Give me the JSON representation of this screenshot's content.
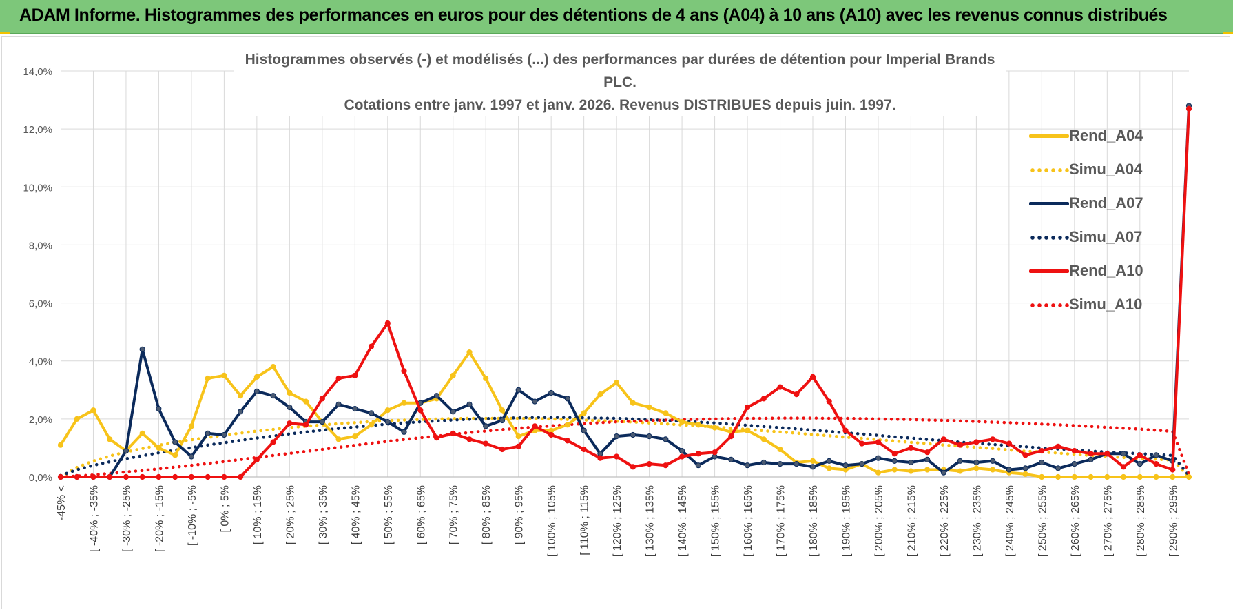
{
  "header": {
    "title": "ADAM Informe. Histogrammes des performances en euros pour des détentions de 4 ans (A04) à 10 ans (A10) avec les revenus connus distribués"
  },
  "chart_data": {
    "type": "line",
    "title_line1": "Histogrammes observés (-) et modélisés (...) des performances par durées de détention pour Imperial Brands PLC.",
    "title_line2": "Cotations entre janv. 1997 et janv. 2026. Revenus DISTRIBUES depuis juin. 1997.",
    "xlabel": "",
    "ylabel": "",
    "ylim": [
      0,
      14
    ],
    "y_ticks": [
      "0,0%",
      "2,0%",
      "4,0%",
      "6,0%",
      "8,0%",
      "10,0%",
      "12,0%",
      "14,0%"
    ],
    "grid": true,
    "legend_position": "right",
    "category_labels": [
      "-45% <",
      "[ -40% ; -35%",
      "[ -30% ; -25%",
      "[ -20% ; -15%",
      "[ -10% ; -5%",
      "[ 0% ; 5%",
      "[ 10% ; 15%",
      "[ 20% ; 25%",
      "[ 30% ; 35%",
      "[ 40% ; 45%",
      "[ 50% ; 55%",
      "[ 60% ; 65%",
      "[ 70% ; 75%",
      "[ 80% ; 85%",
      "[ 90% ; 95%",
      "[ 100% ; 105%",
      "[ 110% ; 115%",
      "[ 120% ; 125%",
      "[ 130% ; 135%",
      "[ 140% ; 145%",
      "[ 150% ; 155%",
      "[ 160% ; 165%",
      "[ 170% ; 175%",
      "[ 180% ; 185%",
      "[ 190% ; 195%",
      "[ 200% ; 205%",
      "[ 210% ; 215%",
      "[ 220% ; 225%",
      "[ 230% ; 235%",
      "[ 240% ; 245%",
      "[ 250% ; 255%",
      "[ 260% ; 265%",
      "[ 270% ; 275%",
      "[ 280% ; 285%",
      "[ 290% ; 295%"
    ],
    "n_points": 70,
    "series": [
      {
        "name": "Rend_A04",
        "color": "#f7c31a",
        "style": "solid",
        "markers": true,
        "values": [
          1.1,
          2.0,
          2.3,
          1.3,
          0.9,
          1.5,
          1.0,
          0.75,
          1.75,
          3.4,
          3.5,
          2.8,
          3.45,
          3.8,
          2.9,
          2.6,
          1.9,
          1.3,
          1.4,
          1.8,
          2.3,
          2.55,
          2.55,
          2.7,
          3.5,
          4.3,
          3.4,
          2.3,
          1.4,
          1.6,
          1.6,
          1.8,
          2.2,
          2.85,
          3.25,
          2.55,
          2.4,
          2.2,
          1.9,
          1.8,
          1.7,
          1.55,
          1.6,
          1.3,
          0.95,
          0.5,
          0.55,
          0.3,
          0.25,
          0.45,
          0.15,
          0.25,
          0.2,
          0.25,
          0.25,
          0.2,
          0.3,
          0.25,
          0.15,
          0.1,
          0.0,
          0.0,
          0.0,
          0.0,
          0.0,
          0.0,
          0.0,
          0.0,
          0.0,
          0.0
        ]
      },
      {
        "name": "Simu_A04",
        "color": "#f7c31a",
        "style": "dotted",
        "markers": false,
        "values": [
          0.0,
          0.33,
          0.55,
          0.72,
          0.86,
          0.98,
          1.09,
          1.19,
          1.28,
          1.36,
          1.44,
          1.51,
          1.58,
          1.64,
          1.7,
          1.75,
          1.79,
          1.84,
          1.87,
          1.91,
          1.94,
          1.96,
          1.98,
          2.0,
          2.01,
          2.02,
          2.02,
          2.02,
          2.02,
          2.01,
          2.0,
          1.98,
          1.96,
          1.94,
          1.92,
          1.89,
          1.86,
          1.83,
          1.79,
          1.76,
          1.72,
          1.68,
          1.64,
          1.59,
          1.55,
          1.51,
          1.46,
          1.42,
          1.37,
          1.33,
          1.28,
          1.24,
          1.19,
          1.15,
          1.1,
          1.06,
          1.02,
          0.98,
          0.93,
          0.89,
          0.86,
          0.82,
          0.78,
          0.74,
          0.71,
          0.67,
          0.64,
          0.61,
          0.58,
          0.0
        ]
      },
      {
        "name": "Rend_A07",
        "color": "#0b2a5b",
        "style": "solid",
        "markers": true,
        "values": [
          0.0,
          0.0,
          0.0,
          0.0,
          0.9,
          4.4,
          2.35,
          1.2,
          0.7,
          1.5,
          1.45,
          2.25,
          2.95,
          2.8,
          2.4,
          1.9,
          1.9,
          2.5,
          2.35,
          2.2,
          1.9,
          1.55,
          2.55,
          2.8,
          2.25,
          2.5,
          1.75,
          1.95,
          3.0,
          2.6,
          2.9,
          2.7,
          1.6,
          0.8,
          1.4,
          1.45,
          1.4,
          1.3,
          0.9,
          0.4,
          0.7,
          0.6,
          0.4,
          0.5,
          0.45,
          0.45,
          0.35,
          0.55,
          0.4,
          0.45,
          0.65,
          0.55,
          0.5,
          0.6,
          0.15,
          0.55,
          0.5,
          0.55,
          0.25,
          0.3,
          0.5,
          0.3,
          0.45,
          0.6,
          0.8,
          0.8,
          0.45,
          0.75,
          0.55,
          12.8
        ]
      },
      {
        "name": "Simu_A07",
        "color": "#0b2a5b",
        "style": "dotted",
        "markers": false,
        "values": [
          0.05,
          0.25,
          0.4,
          0.52,
          0.63,
          0.73,
          0.83,
          0.92,
          1.01,
          1.1,
          1.18,
          1.26,
          1.34,
          1.41,
          1.48,
          1.55,
          1.61,
          1.67,
          1.72,
          1.77,
          1.82,
          1.86,
          1.9,
          1.93,
          1.96,
          1.99,
          2.01,
          2.03,
          2.04,
          2.05,
          2.05,
          2.05,
          2.04,
          2.03,
          2.02,
          2.0,
          1.98,
          1.95,
          1.92,
          1.89,
          1.86,
          1.82,
          1.78,
          1.74,
          1.7,
          1.66,
          1.61,
          1.57,
          1.52,
          1.48,
          1.43,
          1.38,
          1.34,
          1.29,
          1.25,
          1.2,
          1.16,
          1.12,
          1.08,
          1.04,
          1.0,
          0.96,
          0.93,
          0.89,
          0.86,
          0.83,
          0.8,
          0.77,
          0.74,
          0.05
        ]
      },
      {
        "name": "Rend_A10",
        "color": "#ee1111",
        "style": "solid",
        "markers": true,
        "values": [
          0.0,
          0.0,
          0.0,
          0.0,
          0.0,
          0.0,
          0.0,
          0.0,
          0.0,
          0.0,
          0.0,
          0.0,
          0.6,
          1.2,
          1.85,
          1.8,
          2.7,
          3.4,
          3.5,
          4.5,
          5.3,
          3.65,
          2.3,
          1.35,
          1.5,
          1.3,
          1.15,
          0.95,
          1.05,
          1.75,
          1.45,
          1.25,
          0.95,
          0.65,
          0.7,
          0.35,
          0.45,
          0.4,
          0.7,
          0.8,
          0.85,
          1.4,
          2.4,
          2.7,
          3.1,
          2.85,
          3.45,
          2.6,
          1.6,
          1.15,
          1.2,
          0.8,
          1.0,
          0.85,
          1.3,
          1.1,
          1.2,
          1.3,
          1.15,
          0.75,
          0.9,
          1.05,
          0.9,
          0.8,
          0.8,
          0.35,
          0.75,
          0.45,
          0.25,
          12.7
        ]
      },
      {
        "name": "Simu_A10",
        "color": "#ee1111",
        "style": "dotted",
        "markers": false,
        "values": [
          0.0,
          0.03,
          0.07,
          0.12,
          0.17,
          0.22,
          0.28,
          0.34,
          0.4,
          0.46,
          0.53,
          0.6,
          0.67,
          0.74,
          0.81,
          0.88,
          0.95,
          1.02,
          1.09,
          1.16,
          1.23,
          1.29,
          1.35,
          1.41,
          1.47,
          1.53,
          1.58,
          1.63,
          1.68,
          1.72,
          1.76,
          1.8,
          1.84,
          1.87,
          1.9,
          1.92,
          1.94,
          1.96,
          1.98,
          1.99,
          2.0,
          2.01,
          2.02,
          2.02,
          2.03,
          2.03,
          2.03,
          2.02,
          2.02,
          2.01,
          2.0,
          1.99,
          1.98,
          1.96,
          1.95,
          1.93,
          1.91,
          1.89,
          1.87,
          1.85,
          1.82,
          1.8,
          1.77,
          1.74,
          1.71,
          1.68,
          1.65,
          1.61,
          1.57,
          0.1
        ]
      }
    ]
  }
}
